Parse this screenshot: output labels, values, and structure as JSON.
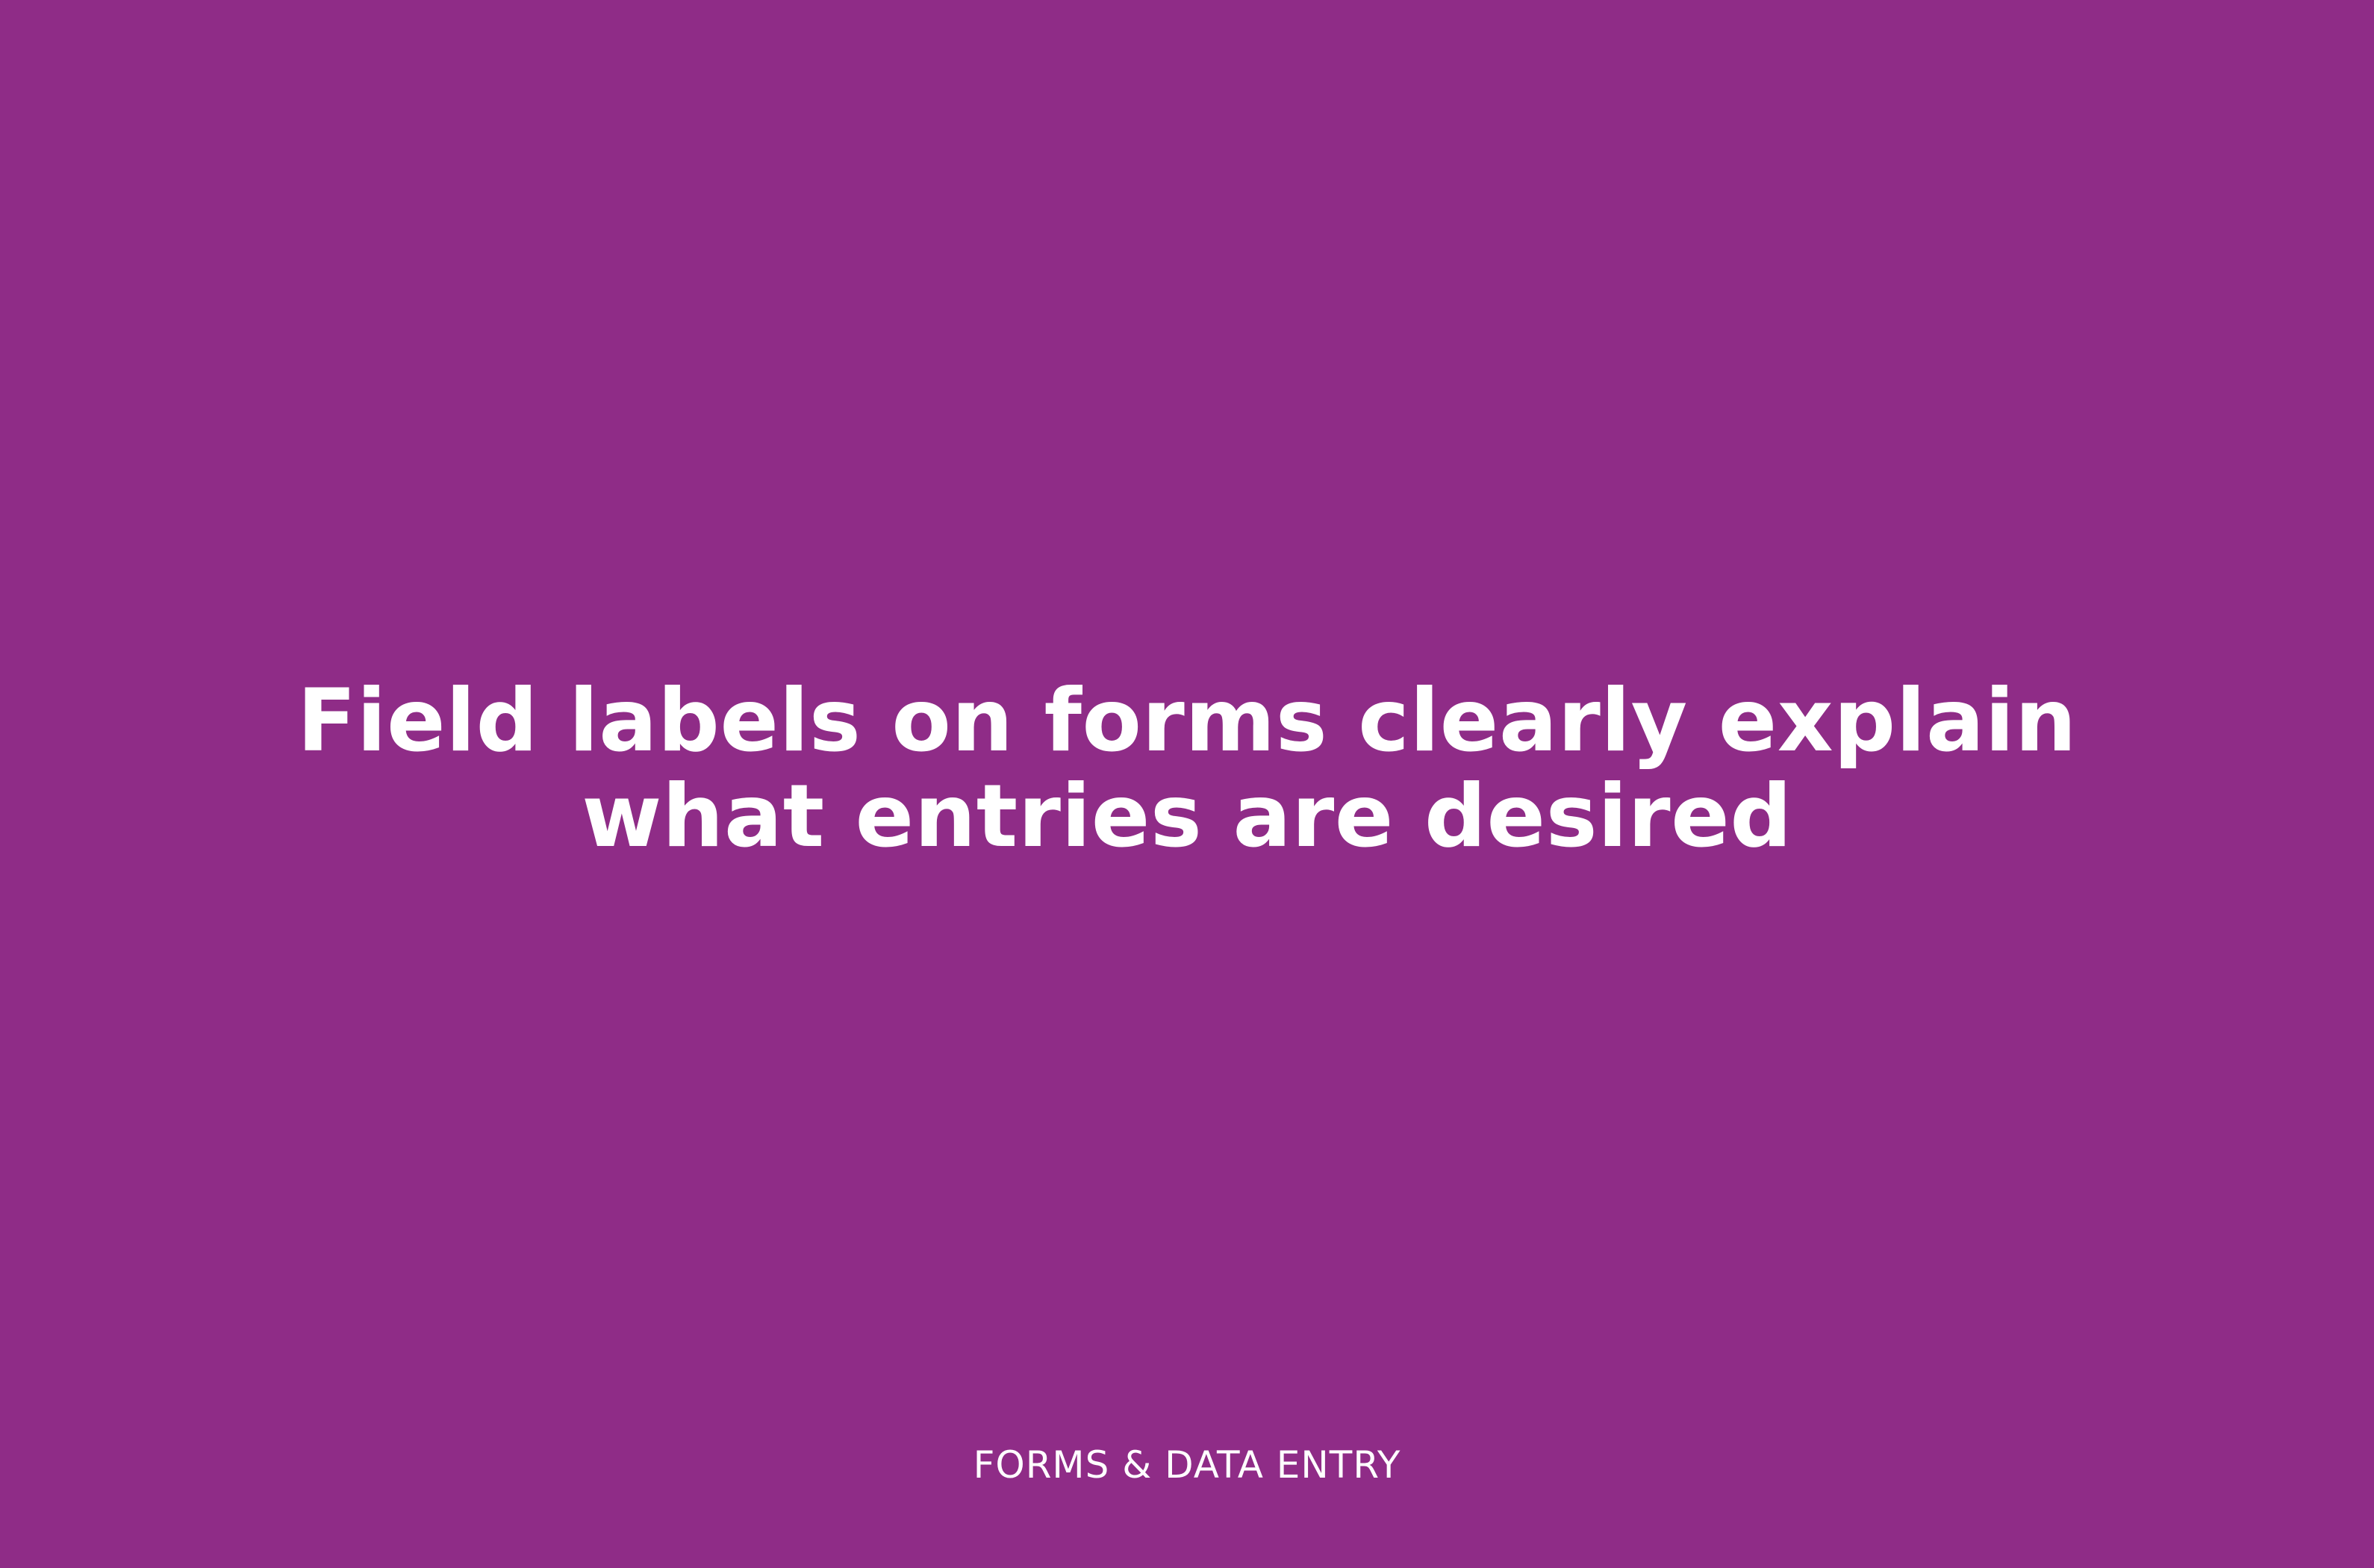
{
  "card": {
    "headline": "Field labels on forms clearly explain what entries are desired",
    "category": "FORMS & DATA ENTRY",
    "background_color": "#8f2c87",
    "text_color": "#ffffff"
  }
}
